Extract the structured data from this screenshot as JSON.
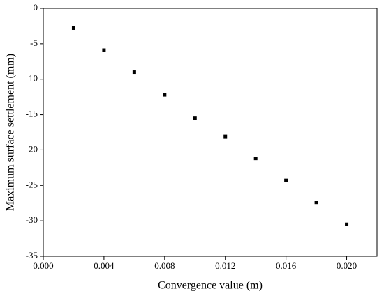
{
  "chart_data": {
    "type": "scatter",
    "x_label": "Convergence value (m)",
    "y_label": "Maximum surface settlement (mm)",
    "series": [
      {
        "color": "#000000",
        "x": [
          0.002,
          0.004,
          0.006,
          0.008,
          0.01,
          0.012,
          0.014,
          0.016,
          0.018,
          0.02
        ],
        "values": [
          -2.8,
          -5.9,
          -9.0,
          -12.2,
          -15.5,
          -18.1,
          -21.2,
          -24.3,
          -27.4,
          -30.5
        ]
      }
    ],
    "xlim": [
      0,
      0.022
    ],
    "xticks": [
      {
        "value": 0,
        "label": "0.000"
      },
      {
        "value": 0.004,
        "label": "0.004"
      },
      {
        "value": 0.008,
        "label": "0.008"
      },
      {
        "value": 0.012,
        "label": "0.012"
      },
      {
        "value": 0.016,
        "label": "0.016"
      },
      {
        "value": 0.02,
        "label": "0.020"
      }
    ],
    "ylim": [
      -35,
      0
    ],
    "yticks": [
      0,
      -5,
      -10,
      -15,
      -20,
      -25,
      -30,
      -35
    ]
  }
}
